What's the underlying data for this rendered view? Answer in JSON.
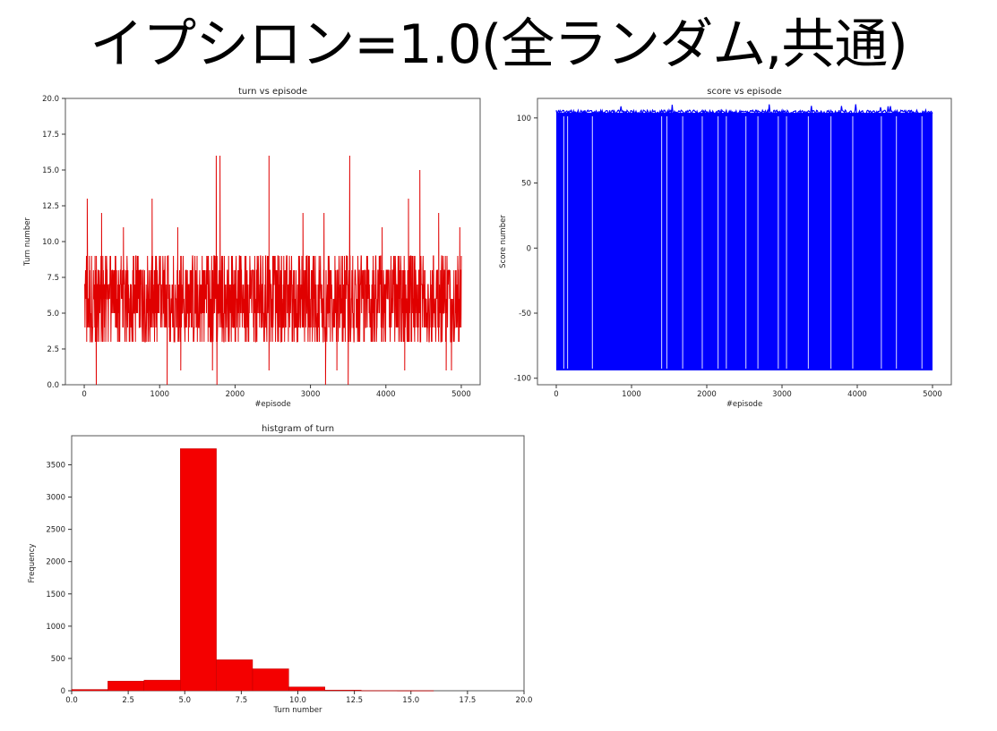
{
  "slide": {
    "title": "イプシロン=1.0(全ランダム,共通)"
  },
  "colors": {
    "turn_line": "#e00000",
    "score_line": "#0000ff",
    "hist_bar": "#f40000",
    "axis": "#333333"
  },
  "chart_data": [
    {
      "id": "turn",
      "type": "line",
      "title": "turn vs episode",
      "xlabel": "#episode",
      "ylabel": "Turn number",
      "xlim": [
        -250,
        5250
      ],
      "ylim": [
        0,
        20
      ],
      "xticks": [
        0,
        1000,
        2000,
        3000,
        4000,
        5000
      ],
      "yticks": [
        0.0,
        2.5,
        5.0,
        7.5,
        10.0,
        12.5,
        15.0,
        17.5,
        20.0
      ],
      "xtick_labels": [
        "0",
        "1000",
        "2000",
        "3000",
        "4000",
        "5000"
      ],
      "ytick_labels": [
        "0.0",
        "2.5",
        "5.0",
        "7.5",
        "10.0",
        "12.5",
        "15.0",
        "17.5",
        "20.0"
      ],
      "x_range": [
        0,
        5000
      ],
      "series": [
        {
          "typical_band": [
            4,
            8
          ],
          "common_values": [
            3,
            4,
            5,
            6,
            7,
            8,
            9
          ],
          "spikes": [
            {
              "x": 40,
              "y": 13
            },
            {
              "x": 230,
              "y": 12
            },
            {
              "x": 520,
              "y": 11
            },
            {
              "x": 900,
              "y": 13
            },
            {
              "x": 1240,
              "y": 11
            },
            {
              "x": 1750,
              "y": 16
            },
            {
              "x": 1800,
              "y": 16
            },
            {
              "x": 2450,
              "y": 16
            },
            {
              "x": 2900,
              "y": 12
            },
            {
              "x": 3180,
              "y": 12
            },
            {
              "x": 3520,
              "y": 16
            },
            {
              "x": 3950,
              "y": 11
            },
            {
              "x": 4300,
              "y": 13
            },
            {
              "x": 4450,
              "y": 15
            },
            {
              "x": 4700,
              "y": 12
            },
            {
              "x": 4980,
              "y": 11
            }
          ],
          "dips": [
            {
              "x": 160,
              "y": 0
            },
            {
              "x": 1100,
              "y": 0
            },
            {
              "x": 1280,
              "y": 1
            },
            {
              "x": 1700,
              "y": 1
            },
            {
              "x": 1760,
              "y": 0
            },
            {
              "x": 2450,
              "y": 1
            },
            {
              "x": 3200,
              "y": 0
            },
            {
              "x": 3350,
              "y": 1
            },
            {
              "x": 3500,
              "y": 0
            },
            {
              "x": 4250,
              "y": 1
            },
            {
              "x": 4800,
              "y": 1
            },
            {
              "x": 4870,
              "y": 1
            }
          ]
        }
      ]
    },
    {
      "id": "score",
      "type": "line",
      "title": "score vs episode",
      "xlabel": "#episode",
      "ylabel": "Score number",
      "xlim": [
        -250,
        5250
      ],
      "ylim": [
        -105,
        115
      ],
      "xticks": [
        0,
        1000,
        2000,
        3000,
        4000,
        5000
      ],
      "yticks": [
        -100,
        -50,
        0,
        50,
        100
      ],
      "xtick_labels": [
        "0",
        "1000",
        "2000",
        "3000",
        "4000",
        "5000"
      ],
      "ytick_labels": [
        "-100",
        "-50",
        "0",
        "50",
        "100"
      ],
      "x_range": [
        0,
        5000
      ],
      "series": [
        {
          "high_value": 104,
          "low_value": -94,
          "high_jitter_max": 109,
          "gap_episodes": [
            100,
            150,
            480,
            1400,
            1470,
            1680,
            1940,
            2150,
            2260,
            2520,
            2680,
            2950,
            3060,
            3350,
            3650,
            3940,
            4320,
            4520,
            4860
          ]
        }
      ]
    },
    {
      "id": "hist",
      "type": "bar",
      "title": "histgram of turn",
      "xlabel": "Turn number",
      "ylabel": "Frequency",
      "xlim": [
        0,
        20
      ],
      "ylim": [
        0,
        3950
      ],
      "xticks": [
        0.0,
        2.5,
        5.0,
        7.5,
        10.0,
        12.5,
        15.0,
        17.5,
        20.0
      ],
      "yticks": [
        0,
        500,
        1000,
        1500,
        2000,
        2500,
        3000,
        3500
      ],
      "xtick_labels": [
        "0.0",
        "2.5",
        "5.0",
        "7.5",
        "10.0",
        "12.5",
        "15.0",
        "17.5",
        "20.0"
      ],
      "ytick_labels": [
        "0",
        "500",
        "1000",
        "1500",
        "2000",
        "2500",
        "3000",
        "3500"
      ],
      "bins": [
        [
          0.0,
          1.6
        ],
        [
          1.6,
          3.2
        ],
        [
          3.2,
          4.8
        ],
        [
          4.8,
          6.4
        ],
        [
          6.4,
          8.0
        ],
        [
          8.0,
          9.6
        ],
        [
          9.6,
          11.2
        ],
        [
          11.2,
          12.8
        ],
        [
          12.8,
          14.4
        ],
        [
          14.4,
          16.0
        ]
      ],
      "values": [
        20,
        150,
        165,
        3750,
        480,
        340,
        60,
        10,
        4,
        2
      ]
    }
  ]
}
